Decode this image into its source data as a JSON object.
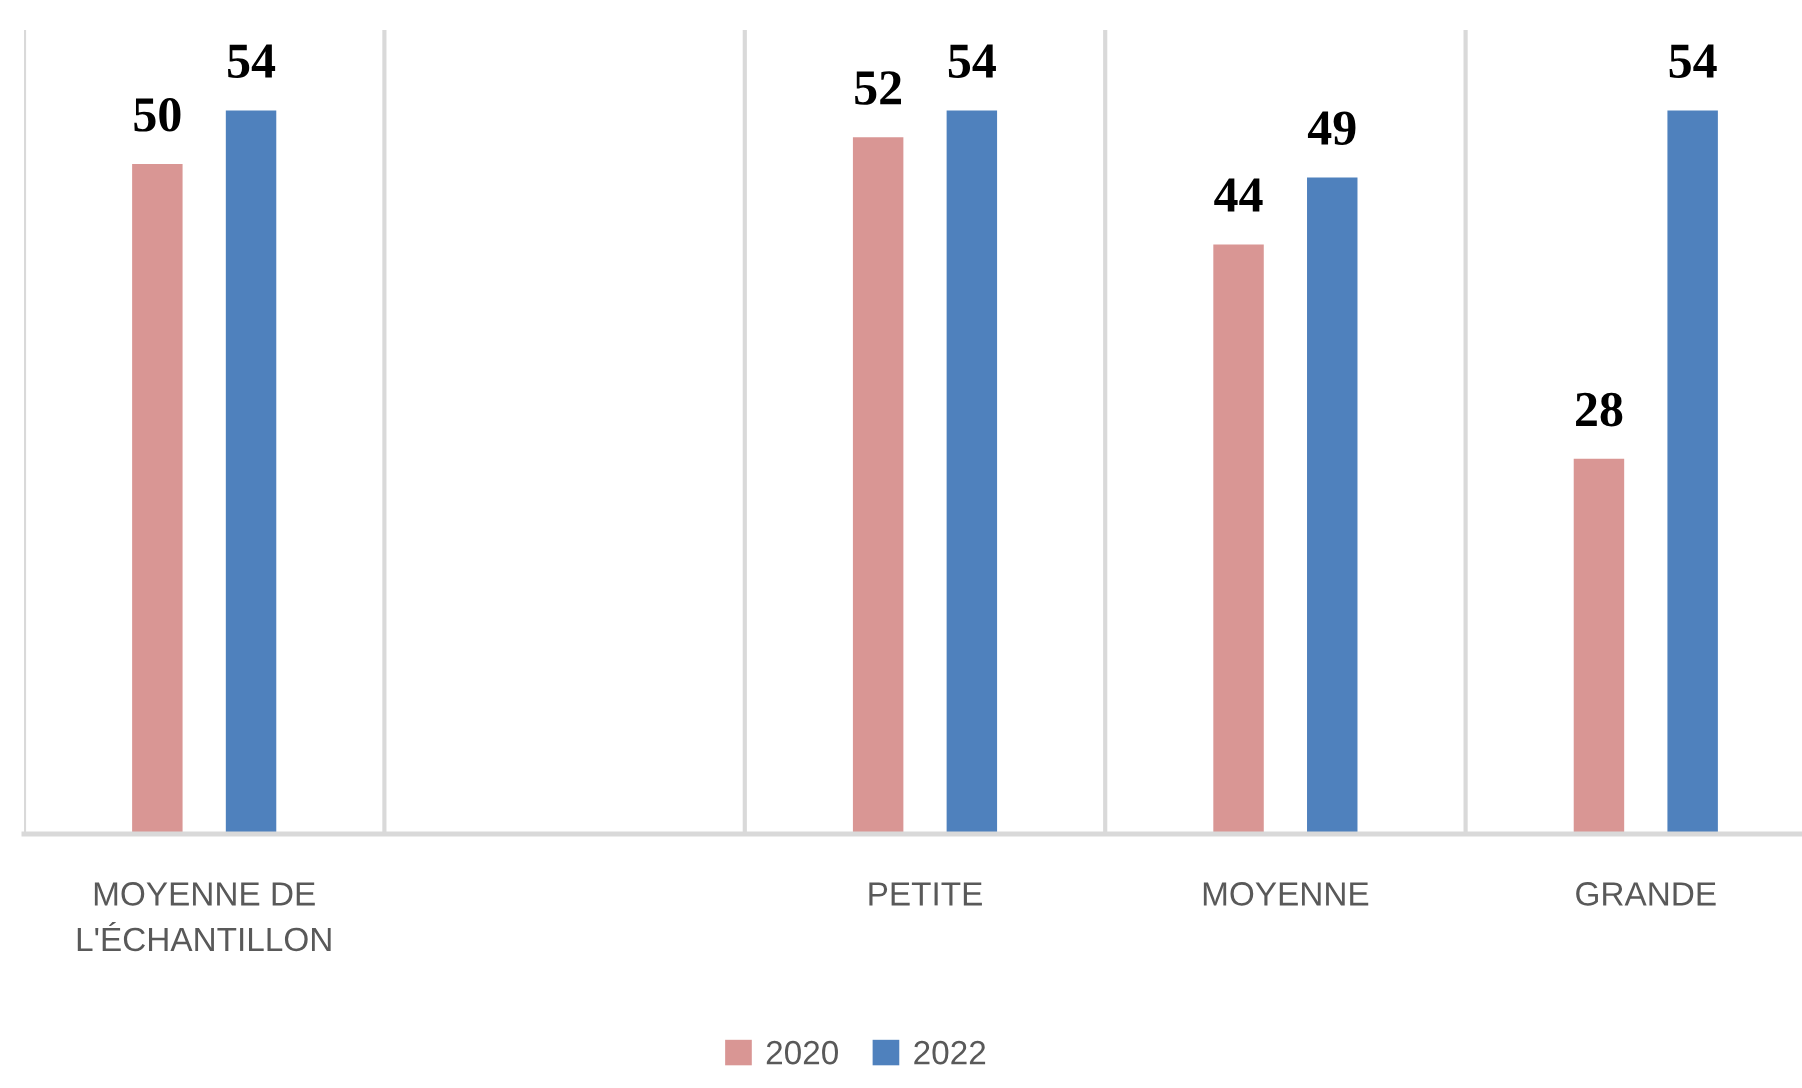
{
  "chart_data": {
    "type": "bar",
    "categories": [
      "MOYENNE DE L'ÉCHANTILLON",
      null,
      "PETITE",
      "MOYENNE",
      "GRANDE"
    ],
    "series": [
      {
        "name": "2020",
        "color": "#d99694",
        "values": [
          50,
          null,
          52,
          44,
          28
        ]
      },
      {
        "name": "2022",
        "color": "#4f81bd",
        "values": [
          54,
          null,
          54,
          49,
          54
        ]
      }
    ],
    "ylim": [
      0,
      60
    ],
    "data_labels": true,
    "grid": "x",
    "legend": "bottom",
    "tick_labels": "x"
  }
}
